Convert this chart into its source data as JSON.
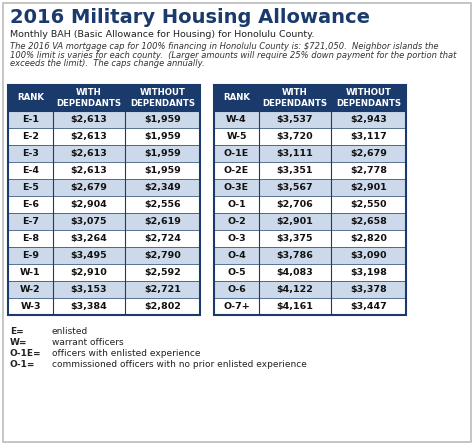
{
  "title": "2016 Military Housing Allowance",
  "subtitle": "Monthly BAH (Basic Allowance for Housing) for Honolulu County.",
  "note_lines": [
    "The 2016 VA mortgage cap for 100% financing in Honolulu County is: $721,050.  Neighbor islands the",
    "100% limit is varies for each county.  (Larger amounts will require 25% down payment for the portion that",
    "exceeds the limit).  The caps change annually."
  ],
  "header_bg": "#1a3a6b",
  "header_text": "#ffffff",
  "row_odd_bg": "#ccd9ea",
  "row_even_bg": "#ffffff",
  "border_color": "#1a3a6b",
  "outer_bg": "#ffffff",
  "title_color": "#1a3a6b",
  "left_table": {
    "headers": [
      "RANK",
      "WITH\nDEPENDANTS",
      "WITHOUT\nDEPENDANTS"
    ],
    "rows": [
      [
        "E-1",
        "$2,613",
        "$1,959"
      ],
      [
        "E-2",
        "$2,613",
        "$1,959"
      ],
      [
        "E-3",
        "$2,613",
        "$1,959"
      ],
      [
        "E-4",
        "$2,613",
        "$1,959"
      ],
      [
        "E-5",
        "$2,679",
        "$2,349"
      ],
      [
        "E-6",
        "$2,904",
        "$2,556"
      ],
      [
        "E-7",
        "$3,075",
        "$2,619"
      ],
      [
        "E-8",
        "$3,264",
        "$2,724"
      ],
      [
        "E-9",
        "$3,495",
        "$2,790"
      ],
      [
        "W-1",
        "$2,910",
        "$2,592"
      ],
      [
        "W-2",
        "$3,153",
        "$2,721"
      ],
      [
        "W-3",
        "$3,384",
        "$2,802"
      ]
    ]
  },
  "right_table": {
    "headers": [
      "RANK",
      "WITH\nDEPENDANTS",
      "WITHOUT\nDEPENDANTS"
    ],
    "rows": [
      [
        "W-4",
        "$3,537",
        "$2,943"
      ],
      [
        "W-5",
        "$3,720",
        "$3,117"
      ],
      [
        "O-1E",
        "$3,111",
        "$2,679"
      ],
      [
        "O-2E",
        "$3,351",
        "$2,778"
      ],
      [
        "O-3E",
        "$3,567",
        "$2,901"
      ],
      [
        "O-1",
        "$2,706",
        "$2,550"
      ],
      [
        "O-2",
        "$2,901",
        "$2,658"
      ],
      [
        "O-3",
        "$3,375",
        "$2,820"
      ],
      [
        "O-4",
        "$3,786",
        "$3,090"
      ],
      [
        "O-5",
        "$4,083",
        "$3,198"
      ],
      [
        "O-6",
        "$4,122",
        "$3,378"
      ],
      [
        "O-7+",
        "$4,161",
        "$3,447"
      ]
    ]
  },
  "legend": [
    [
      "E=",
      "enlisted"
    ],
    [
      "W=",
      "warrant officers"
    ],
    [
      "O-1E=",
      "officers with enlisted experience"
    ],
    [
      "O-1=",
      "commissioned officers with no prior enlisted experience"
    ]
  ],
  "fig_width": 4.74,
  "fig_height": 4.45,
  "dpi": 100
}
